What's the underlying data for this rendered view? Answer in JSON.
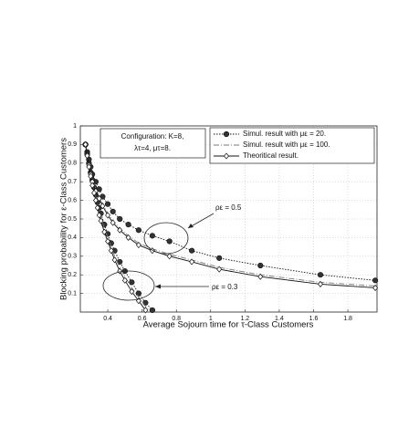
{
  "chart_data": {
    "type": "line",
    "xlabel": "Average Sojourn time for    τ-Class Customers",
    "ylabel": "Blocking probability for    ε-Class Customers",
    "xlim": [
      0.24,
      1.97
    ],
    "ylim": [
      0,
      1
    ],
    "xticks": [
      0.4,
      0.6,
      0.8,
      1,
      1.2,
      1.4,
      1.6,
      1.8
    ],
    "yticks": [
      0.1,
      0.2,
      0.3,
      0.4,
      0.5,
      0.6,
      0.7,
      0.8,
      0.9,
      1
    ],
    "grid": true,
    "series": [
      {
        "name": "Simul. result with    με = 20.",
        "color": "#111111",
        "dash": "1.5,1.5",
        "marker": "circle",
        "x": [
          0.27,
          0.28,
          0.29,
          0.3,
          0.31,
          0.33,
          0.35,
          0.37,
          0.4,
          0.43,
          0.47,
          0.52,
          0.58,
          0.66,
          0.76,
          0.89,
          1.05,
          1.29,
          1.64,
          1.96,
          null,
          0.27,
          0.28,
          0.29,
          0.3,
          0.31,
          0.32,
          0.33,
          0.34,
          0.35,
          0.36,
          0.38,
          0.4,
          0.42,
          0.44,
          0.47,
          0.5,
          0.54,
          0.58,
          0.62,
          0.66
        ],
        "values": [
          0.9,
          0.86,
          0.82,
          0.78,
          0.74,
          0.7,
          0.66,
          0.62,
          0.58,
          0.54,
          0.5,
          0.47,
          0.44,
          0.41,
          0.38,
          0.33,
          0.29,
          0.25,
          0.2,
          0.17,
          null,
          0.9,
          0.85,
          0.8,
          0.75,
          0.71,
          0.67,
          0.63,
          0.59,
          0.56,
          0.53,
          0.47,
          0.42,
          0.37,
          0.33,
          0.27,
          0.22,
          0.16,
          0.1,
          0.05,
          0.01
        ]
      },
      {
        "name": "Simul. result with    με = 100.",
        "color": "#777777",
        "dash": "6,2,1,2",
        "marker": "none",
        "x": [
          0.27,
          0.28,
          0.29,
          0.3,
          0.31,
          0.33,
          0.35,
          0.37,
          0.4,
          0.43,
          0.47,
          0.52,
          0.58,
          0.66,
          0.76,
          0.89,
          1.05,
          1.29,
          1.64,
          1.96,
          null,
          0.27,
          0.28,
          0.29,
          0.3,
          0.31,
          0.32,
          0.33,
          0.34,
          0.35,
          0.36,
          0.38,
          0.4,
          0.42,
          0.44,
          0.47,
          0.5,
          0.54,
          0.58,
          0.62,
          0.64
        ],
        "values": [
          0.9,
          0.84,
          0.8,
          0.75,
          0.71,
          0.66,
          0.62,
          0.58,
          0.53,
          0.49,
          0.45,
          0.41,
          0.37,
          0.34,
          0.31,
          0.28,
          0.24,
          0.2,
          0.16,
          0.14,
          null,
          0.9,
          0.84,
          0.79,
          0.74,
          0.69,
          0.65,
          0.61,
          0.57,
          0.54,
          0.51,
          0.45,
          0.4,
          0.35,
          0.3,
          0.24,
          0.19,
          0.13,
          0.08,
          0.03,
          0.01
        ]
      },
      {
        "name": "Theoritical result.",
        "color": "#111111",
        "dash": "none",
        "marker": "diamond",
        "x": [
          0.27,
          0.28,
          0.29,
          0.3,
          0.31,
          0.33,
          0.35,
          0.37,
          0.4,
          0.43,
          0.47,
          0.52,
          0.58,
          0.66,
          0.76,
          0.89,
          1.05,
          1.29,
          1.64,
          1.96,
          null,
          0.27,
          0.28,
          0.29,
          0.3,
          0.31,
          0.32,
          0.33,
          0.34,
          0.35,
          0.36,
          0.38,
          0.4,
          0.42,
          0.44,
          0.47,
          0.5,
          0.54,
          0.58,
          0.62
        ],
        "values": [
          0.9,
          0.84,
          0.79,
          0.74,
          0.7,
          0.65,
          0.61,
          0.57,
          0.52,
          0.48,
          0.44,
          0.4,
          0.36,
          0.33,
          0.3,
          0.27,
          0.23,
          0.19,
          0.15,
          0.13,
          null,
          0.9,
          0.84,
          0.78,
          0.73,
          0.68,
          0.64,
          0.6,
          0.56,
          0.52,
          0.49,
          0.43,
          0.38,
          0.33,
          0.28,
          0.22,
          0.17,
          0.11,
          0.06,
          0.01
        ]
      }
    ],
    "annotations": {
      "configuration": [
        "Configuration: K=8,",
        "λτ=4,  μτ=8."
      ],
      "rho_high": "ρε = 0.5",
      "rho_low": "ρε = 0.3"
    }
  }
}
